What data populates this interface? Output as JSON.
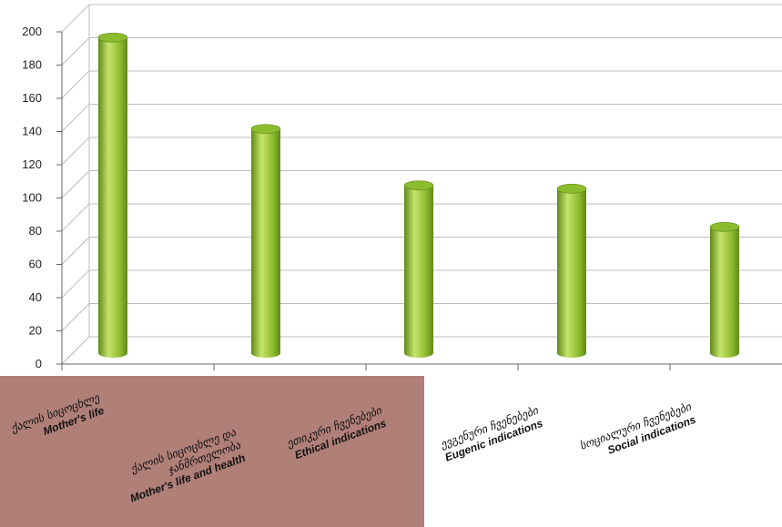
{
  "colors": {
    "panel": "#b07f78",
    "bar_side": "#8dbb2e",
    "bar_light": "#c6e46a",
    "bar_dark": "#5f8a18",
    "grid": "#bdbdbd",
    "axis": "#666666"
  },
  "chart_data": {
    "type": "bar",
    "title": "",
    "xlabel": "",
    "ylabel": "",
    "ylim": [
      0,
      200
    ],
    "yticks": [
      0,
      20,
      40,
      60,
      80,
      100,
      120,
      140,
      160,
      180,
      200
    ],
    "grid": true,
    "categories": [
      {
        "geo": "ქალის სიცოცხლე",
        "en": "Mother's life",
        "value": 190
      },
      {
        "geo": "ქალის სიცოცხლე და ჯანმრთელობა",
        "geo_line1": "ქალის სიცოცხლე და",
        "geo_line2": "ჯანმრთელობა",
        "en": "Mother's life and health",
        "value": 135
      },
      {
        "geo": "ეთიკური ჩვენებები",
        "en": "Ethical indications",
        "value": 101
      },
      {
        "geo": "ევგენური ჩვენებები",
        "en": "Eugenic indications",
        "value": 99
      },
      {
        "geo": "სოციალური ჩვენებები",
        "en": "Social indications",
        "value": 76
      }
    ]
  }
}
